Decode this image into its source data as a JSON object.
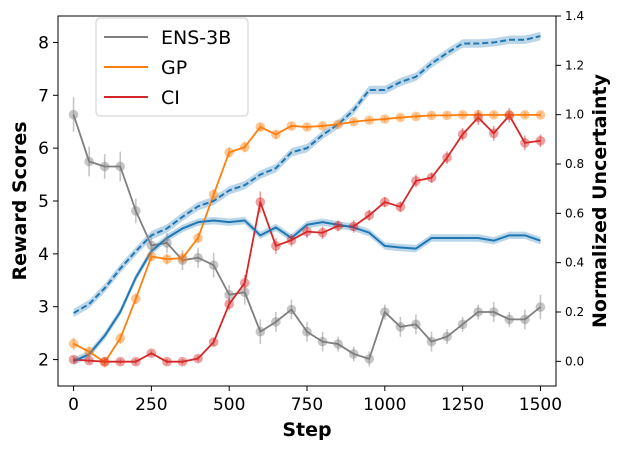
{
  "chart_data": {
    "type": "line",
    "xlabel": "Step",
    "ylabel_left": "Reward Scores",
    "ylabel_right": "Normalized Uncertainty",
    "xlim": [
      -50,
      1550
    ],
    "ylim_left": [
      1.5,
      8.5
    ],
    "ylim_right": [
      -0.1,
      1.4
    ],
    "x_ticks": [
      0,
      250,
      500,
      750,
      1000,
      1250,
      1500
    ],
    "y_ticks_left": [
      2,
      3,
      4,
      5,
      6,
      7,
      8
    ],
    "y_ticks_right": [
      0.0,
      0.2,
      0.4,
      0.6,
      0.8,
      1.0,
      1.2,
      1.4
    ],
    "y_tick_labels_right": [
      "0.0",
      "0.2",
      "0.4",
      "0.6",
      "0.8",
      "1.0",
      "1.2",
      "1.4"
    ],
    "legend": [
      "ENS-3B",
      "GP",
      "CI"
    ],
    "legend_position": "upper-left",
    "grid": false,
    "series": [
      {
        "name": "ENS-3B",
        "axis": "right",
        "color": "#7f7f7f",
        "x": [
          0,
          50,
          100,
          150,
          200,
          250,
          300,
          350,
          400,
          450,
          500,
          550,
          600,
          650,
          700,
          750,
          800,
          850,
          900,
          950,
          1000,
          1050,
          1100,
          1150,
          1200,
          1250,
          1300,
          1350,
          1400,
          1450,
          1500
        ],
        "y": [
          1.0,
          0.81,
          0.79,
          0.79,
          0.61,
          0.47,
          0.48,
          0.41,
          0.42,
          0.39,
          0.27,
          0.28,
          0.12,
          0.16,
          0.21,
          0.12,
          0.08,
          0.07,
          0.03,
          0.01,
          0.2,
          0.14,
          0.15,
          0.08,
          0.1,
          0.15,
          0.2,
          0.2,
          0.17,
          0.17,
          0.22
        ],
        "err": [
          0.07,
          0.06,
          0.05,
          0.06,
          0.05,
          0.04,
          0.04,
          0.04,
          0.04,
          0.05,
          0.04,
          0.05,
          0.05,
          0.04,
          0.04,
          0.04,
          0.04,
          0.03,
          0.03,
          0.03,
          0.03,
          0.04,
          0.04,
          0.04,
          0.03,
          0.03,
          0.03,
          0.04,
          0.03,
          0.04,
          0.05
        ]
      },
      {
        "name": "GP",
        "axis": "left",
        "color": "#ff7f0e",
        "x": [
          0,
          50,
          100,
          150,
          200,
          250,
          300,
          350,
          400,
          450,
          500,
          550,
          600,
          650,
          700,
          750,
          800,
          850,
          900,
          950,
          1000,
          1050,
          1100,
          1150,
          1200,
          1250,
          1300,
          1350,
          1400,
          1450,
          1500
        ],
        "y": [
          2.3,
          2.15,
          1.95,
          2.4,
          3.15,
          3.95,
          3.9,
          3.92,
          4.3,
          5.12,
          5.92,
          6.02,
          6.4,
          6.26,
          6.42,
          6.4,
          6.42,
          6.45,
          6.5,
          6.53,
          6.55,
          6.58,
          6.6,
          6.62,
          6.62,
          6.63,
          6.63,
          6.63,
          6.63,
          6.63,
          6.63
        ],
        "err": [
          0.12,
          0.1,
          0.1,
          0.1,
          0.1,
          0.1,
          0.1,
          0.1,
          0.1,
          0.1,
          0.1,
          0.1,
          0.08,
          0.08,
          0.06,
          0.06,
          0.05,
          0.05,
          0.05,
          0.05,
          0.05,
          0.05,
          0.05,
          0.05,
          0.05,
          0.05,
          0.05,
          0.05,
          0.05,
          0.05,
          0.05
        ]
      },
      {
        "name": "CI",
        "axis": "left",
        "color": "#d62728",
        "x": [
          0,
          50,
          100,
          150,
          200,
          250,
          300,
          350,
          400,
          450,
          500,
          550,
          600,
          650,
          700,
          750,
          800,
          850,
          900,
          950,
          1000,
          1050,
          1100,
          1150,
          1200,
          1250,
          1300,
          1350,
          1400,
          1450,
          1500
        ],
        "y": [
          2.0,
          1.98,
          1.96,
          1.96,
          1.96,
          2.12,
          1.96,
          1.96,
          2.02,
          2.33,
          3.05,
          3.45,
          4.98,
          4.15,
          4.26,
          4.42,
          4.4,
          4.53,
          4.52,
          4.73,
          4.98,
          4.89,
          5.38,
          5.44,
          5.82,
          6.26,
          6.58,
          6.28,
          6.62,
          6.1,
          6.14
        ],
        "err": [
          0.06,
          0.05,
          0.05,
          0.05,
          0.05,
          0.05,
          0.05,
          0.05,
          0.05,
          0.08,
          0.12,
          0.15,
          0.2,
          0.15,
          0.12,
          0.12,
          0.12,
          0.1,
          0.12,
          0.1,
          0.1,
          0.1,
          0.12,
          0.1,
          0.12,
          0.12,
          0.14,
          0.14,
          0.14,
          0.14,
          0.12
        ]
      },
      {
        "name": "",
        "axis": "left",
        "style": "solid",
        "color": "#1f77b4",
        "x": [
          0,
          50,
          100,
          150,
          200,
          250,
          300,
          350,
          400,
          450,
          500,
          550,
          600,
          650,
          700,
          750,
          800,
          850,
          900,
          950,
          1000,
          1050,
          1100,
          1150,
          1200,
          1250,
          1300,
          1350,
          1400,
          1450,
          1500
        ],
        "y": [
          1.97,
          2.1,
          2.45,
          2.9,
          3.55,
          4.05,
          4.3,
          4.48,
          4.6,
          4.63,
          4.6,
          4.63,
          4.35,
          4.5,
          4.3,
          4.55,
          4.6,
          4.55,
          4.5,
          4.4,
          4.15,
          4.12,
          4.1,
          4.3,
          4.3,
          4.3,
          4.3,
          4.25,
          4.35,
          4.35,
          4.25
        ],
        "band": 0.07
      },
      {
        "name": "",
        "axis": "left",
        "style": "dashed",
        "color": "#1f77b4",
        "x": [
          0,
          50,
          100,
          150,
          200,
          250,
          300,
          350,
          400,
          450,
          500,
          550,
          600,
          650,
          700,
          750,
          800,
          850,
          900,
          950,
          1000,
          1050,
          1100,
          1150,
          1200,
          1250,
          1300,
          1350,
          1400,
          1450,
          1500
        ],
        "y": [
          2.88,
          3.05,
          3.35,
          3.72,
          4.05,
          4.35,
          4.48,
          4.7,
          4.9,
          5.0,
          5.2,
          5.3,
          5.5,
          5.62,
          5.92,
          6.0,
          6.25,
          6.45,
          6.72,
          7.1,
          7.1,
          7.25,
          7.35,
          7.6,
          7.8,
          7.98,
          7.98,
          8.0,
          8.05,
          8.05,
          8.12
        ],
        "band": 0.08
      }
    ]
  }
}
